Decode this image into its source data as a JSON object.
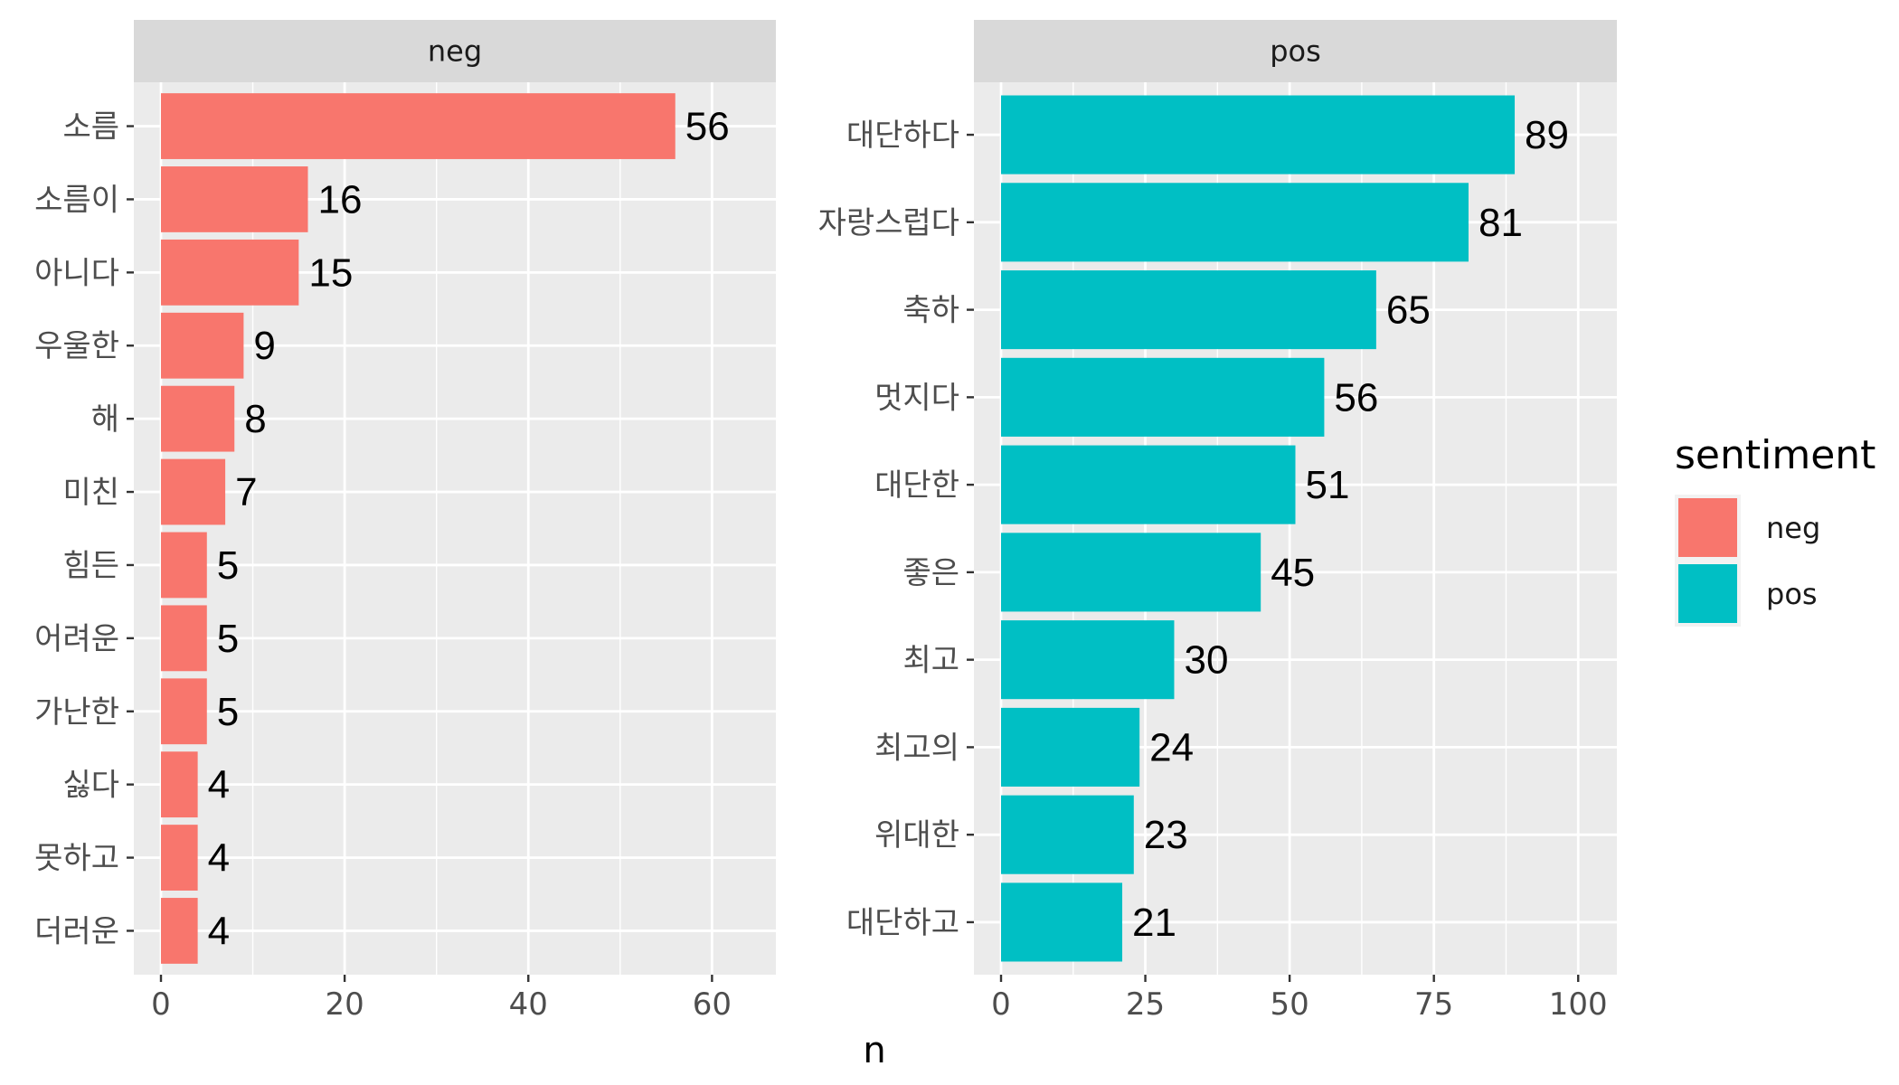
{
  "chart_data": {
    "type": "bar",
    "orientation": "horizontal",
    "xlabel": "n",
    "legend": {
      "title": "sentiment",
      "position": "right",
      "entries": [
        {
          "label": "neg",
          "color": "#F8766D"
        },
        {
          "label": "pos",
          "color": "#00BFC4"
        }
      ]
    },
    "grid": true,
    "facets": [
      {
        "strip": "neg",
        "color": "#F8766D",
        "xlim": [
          0,
          64
        ],
        "ticks": [
          0,
          20,
          40,
          60
        ],
        "categories": [
          "소름",
          "소름이",
          "아니다",
          "우울한",
          "해",
          "미친",
          "힘든",
          "어려운",
          "가난한",
          "싫다",
          "못하고",
          "더러운"
        ],
        "values": [
          56,
          16,
          15,
          9,
          8,
          7,
          5,
          5,
          5,
          4,
          4,
          4
        ]
      },
      {
        "strip": "pos",
        "color": "#00BFC4",
        "xlim": [
          0,
          102
        ],
        "ticks": [
          0,
          25,
          50,
          75,
          100
        ],
        "categories": [
          "대단하다",
          "자랑스럽다",
          "축하",
          "멋지다",
          "대단한",
          "좋은",
          "최고",
          "최고의",
          "위대한",
          "대단하고"
        ],
        "values": [
          89,
          81,
          65,
          56,
          51,
          45,
          30,
          24,
          23,
          21
        ]
      }
    ]
  }
}
